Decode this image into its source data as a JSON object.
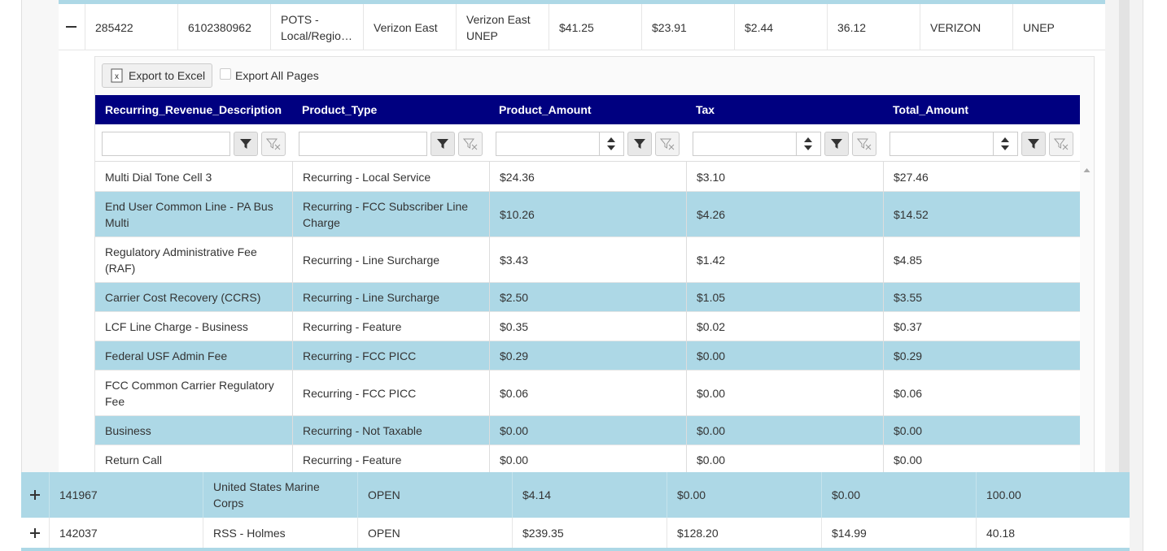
{
  "parent_row": {
    "cells": [
      "285422",
      "6102380962",
      "POTS - Local/Regio…",
      "Verizon East",
      "Verizon East UNEP",
      "$41.25",
      "$23.91",
      "$2.44",
      "36.12",
      "VERIZON",
      "UNEP"
    ]
  },
  "toolbar": {
    "export_button": "Export to Excel",
    "export_all_label": "Export All Pages"
  },
  "detail_table": {
    "columns": [
      "Recurring_Revenue_Description",
      "Product_Type",
      "Product_Amount",
      "Tax",
      "Total_Amount"
    ],
    "rows": [
      [
        "Multi Dial Tone Cell 3",
        "Recurring - Local Service",
        "$24.36",
        "$3.10",
        "$27.46"
      ],
      [
        "End User Common Line - PA Bus Multi",
        "Recurring - FCC Subscriber Line Charge",
        "$10.26",
        "$4.26",
        "$14.52"
      ],
      [
        "Regulatory Administrative Fee (RAF)",
        "Recurring - Line Surcharge",
        "$3.43",
        "$1.42",
        "$4.85"
      ],
      [
        "Carrier Cost Recovery (CCRS)",
        "Recurring - Line Surcharge",
        "$2.50",
        "$1.05",
        "$3.55"
      ],
      [
        "LCF Line Charge - Business",
        "Recurring - Feature",
        "$0.35",
        "$0.02",
        "$0.37"
      ],
      [
        "Federal USF Admin Fee",
        "Recurring - FCC PICC",
        "$0.29",
        "$0.00",
        "$0.29"
      ],
      [
        "FCC Common Carrier Regulatory Fee",
        "Recurring - FCC PICC",
        "$0.06",
        "$0.00",
        "$0.06"
      ],
      [
        "Business",
        "Recurring - Not Taxable",
        "$0.00",
        "$0.00",
        "$0.00"
      ],
      [
        "Return Call",
        "Recurring - Feature",
        "$0.00",
        "$0.00",
        "$0.00"
      ]
    ]
  },
  "outer_rows": [
    [
      "141967",
      "United States Marine Corps",
      "OPEN",
      "$4.14",
      "$0.00",
      "$0.00",
      "100.00"
    ],
    [
      "142037",
      "RSS - Holmes",
      "OPEN",
      "$239.35",
      "$128.20",
      "$14.99",
      "40.18"
    ]
  ]
}
